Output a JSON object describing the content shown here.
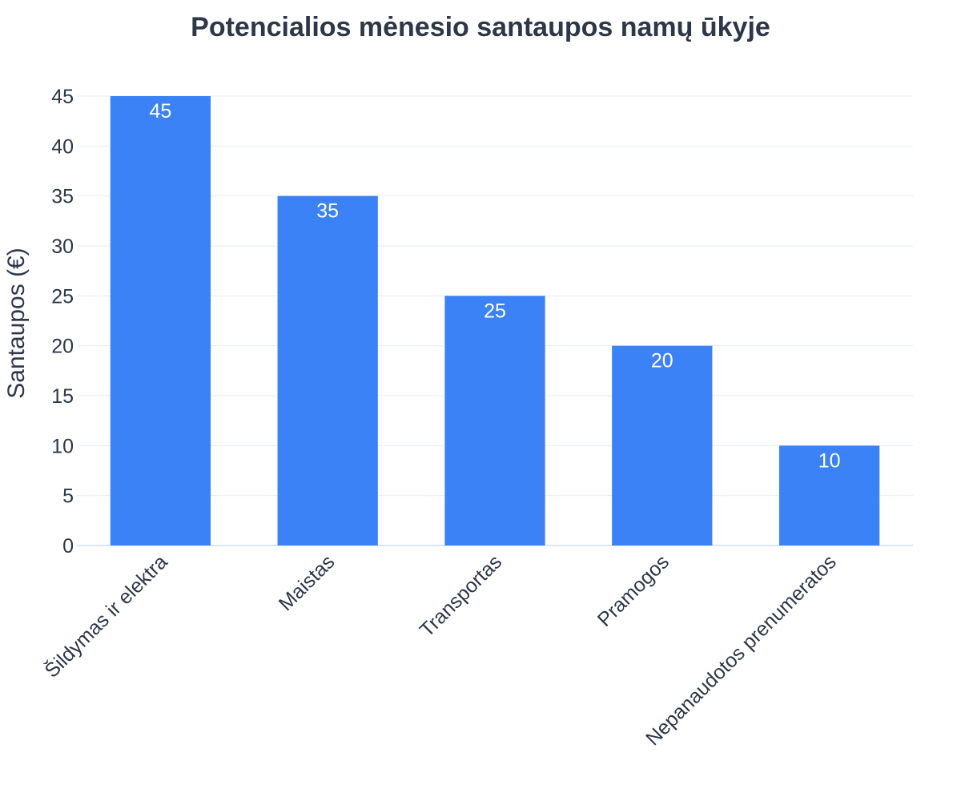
{
  "colors": {
    "bar": "#3b82f6",
    "bar_text": "#ffffff",
    "title": "#2d3748",
    "axis_text": "#2d3748",
    "grid": "#e6ecf4",
    "zero_line": "#dbe6f5"
  },
  "chart_data": {
    "type": "bar",
    "title": "Potencialios mėnesio santaupos namų ūkyje",
    "xlabel": "",
    "ylabel": "Santaupos (€)",
    "categories": [
      "Šildymas ir elektra",
      "Maistas",
      "Transportas",
      "Pramogos",
      "Nepanaudotos prenumeratos"
    ],
    "values": [
      45,
      35,
      25,
      20,
      10
    ],
    "ylim": [
      0,
      45
    ],
    "yticks": [
      0,
      5,
      10,
      15,
      20,
      25,
      30,
      35,
      40,
      45
    ],
    "grid": true,
    "legend": "none",
    "data_labels": "inside-top"
  }
}
